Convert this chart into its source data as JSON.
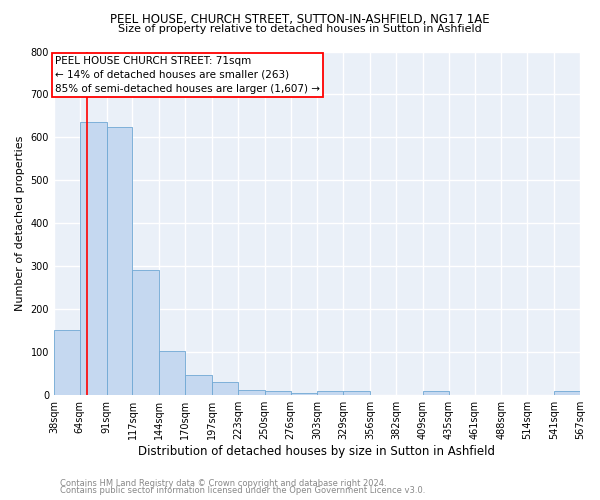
{
  "title1": "PEEL HOUSE, CHURCH STREET, SUTTON-IN-ASHFIELD, NG17 1AE",
  "title2": "Size of property relative to detached houses in Sutton in Ashfield",
  "xlabel": "Distribution of detached houses by size in Sutton in Ashfield",
  "ylabel": "Number of detached properties",
  "footnote1": "Contains HM Land Registry data © Crown copyright and database right 2024.",
  "footnote2": "Contains public sector information licensed under the Open Government Licence v3.0.",
  "annotation_line1": "PEEL HOUSE CHURCH STREET: 71sqm",
  "annotation_line2": "← 14% of detached houses are smaller (263)",
  "annotation_line3": "85% of semi-detached houses are larger (1,607) →",
  "bin_labels": [
    "38sqm",
    "64sqm",
    "91sqm",
    "117sqm",
    "144sqm",
    "170sqm",
    "197sqm",
    "223sqm",
    "250sqm",
    "276sqm",
    "303sqm",
    "329sqm",
    "356sqm",
    "382sqm",
    "409sqm",
    "435sqm",
    "461sqm",
    "488sqm",
    "514sqm",
    "541sqm",
    "567sqm"
  ],
  "bin_edges": [
    38,
    64,
    91,
    117,
    144,
    170,
    197,
    223,
    250,
    276,
    303,
    329,
    356,
    382,
    409,
    435,
    461,
    488,
    514,
    541,
    567
  ],
  "bar_heights": [
    150,
    635,
    625,
    290,
    103,
    45,
    30,
    12,
    8,
    5,
    8,
    8,
    0,
    0,
    8,
    0,
    0,
    0,
    0,
    8,
    0
  ],
  "bar_color": "#c5d8f0",
  "bar_edge_color": "#6fa8d4",
  "red_line_x": 71,
  "ylim": [
    0,
    800
  ],
  "yticks": [
    0,
    100,
    200,
    300,
    400,
    500,
    600,
    700,
    800
  ],
  "background_color": "#eaf0f8",
  "grid_color": "#ffffff",
  "title_fontsize": 8.5,
  "subtitle_fontsize": 8,
  "ylabel_fontsize": 8,
  "xlabel_fontsize": 8.5,
  "tick_fontsize": 7,
  "annotation_fontsize": 7.5,
  "footnote_fontsize": 6
}
